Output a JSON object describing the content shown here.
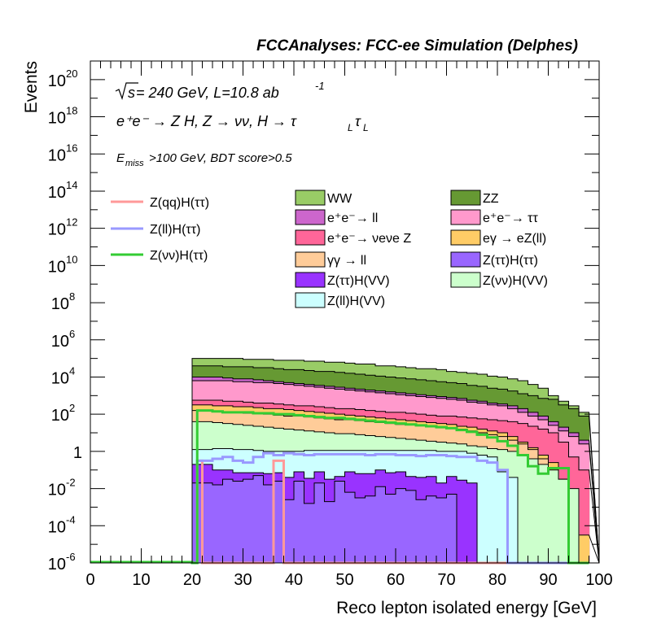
{
  "header": "FCCAnalyses: FCC-ee Simulation (Delphes)",
  "annotations": {
    "energy_sqrt": "s",
    "energy_rest": " = 240 GeV, L=10.8 ab",
    "energy_sup": "-1",
    "process": "e⁺e⁻ → Z H, Z  → νν, H  → τ",
    "process_sub": "L",
    "process_tau2": "τ",
    "cut_prefix": "E",
    "cut_sub": "miss",
    "cut_rest": ">100 GeV, BDT score>0.5"
  },
  "chart_data": {
    "type": "histogram",
    "xlabel": "Reco lepton isolated energy [GeV]",
    "ylabel": "Events",
    "yscale": "log",
    "xlim": [
      0,
      100
    ],
    "ylim_exp": [
      -6,
      21
    ],
    "x_ticks": [
      0,
      10,
      20,
      30,
      40,
      50,
      60,
      70,
      80,
      90,
      100
    ],
    "x_tick_labels": [
      "0",
      "10",
      "20",
      "30",
      "40",
      "50",
      "60",
      "70",
      "80",
      "90",
      "100"
    ],
    "y_ticks_exp": [
      -6,
      -4,
      -2,
      0,
      2,
      4,
      6,
      8,
      10,
      12,
      14,
      16,
      18,
      20
    ],
    "y_tick_labels": [
      {
        "base": "10",
        "exp": "-6"
      },
      {
        "base": "10",
        "exp": "-4"
      },
      {
        "base": "10",
        "exp": "-2"
      },
      {
        "base": "1",
        "exp": ""
      },
      {
        "base": "10",
        "exp": "2"
      },
      {
        "base": "10",
        "exp": "4"
      },
      {
        "base": "10",
        "exp": "6"
      },
      {
        "base": "10",
        "exp": "8"
      },
      {
        "base": "10",
        "exp": "10"
      },
      {
        "base": "10",
        "exp": "12"
      },
      {
        "base": "10",
        "exp": "14"
      },
      {
        "base": "10",
        "exp": "16"
      },
      {
        "base": "10",
        "exp": "18"
      },
      {
        "base": "10",
        "exp": "20"
      }
    ],
    "bin_edges": [
      20,
      22,
      24,
      26,
      28,
      30,
      32,
      34,
      36,
      38,
      40,
      42,
      44,
      46,
      48,
      50,
      52,
      54,
      56,
      58,
      60,
      62,
      64,
      66,
      68,
      70,
      72,
      74,
      76,
      78,
      80,
      82,
      84,
      86,
      88,
      90,
      92,
      94,
      96,
      98
    ],
    "stack_top_log10": [
      {
        "name": "WW",
        "values": [
          5.0,
          5.0,
          5.0,
          5.0,
          5.0,
          4.95,
          4.95,
          4.95,
          4.9,
          4.9,
          4.9,
          4.85,
          4.85,
          4.8,
          4.8,
          4.75,
          4.7,
          4.7,
          4.6,
          4.6,
          4.55,
          4.5,
          4.45,
          4.45,
          4.4,
          4.3,
          4.25,
          4.2,
          4.15,
          4.05,
          4.0,
          3.9,
          3.8,
          3.6,
          3.4,
          3.0,
          2.7,
          2.45,
          2.1
        ]
      },
      {
        "name": "ZZ",
        "values": [
          4.6,
          4.6,
          4.6,
          4.55,
          4.55,
          4.55,
          4.5,
          4.5,
          4.45,
          4.4,
          4.4,
          4.35,
          4.3,
          4.3,
          4.25,
          4.2,
          4.15,
          4.1,
          4.05,
          4.0,
          3.95,
          3.9,
          3.85,
          3.8,
          3.75,
          3.7,
          3.65,
          3.55,
          3.5,
          3.4,
          3.35,
          3.25,
          3.1,
          3.0,
          2.85,
          2.8,
          2.5,
          2.3,
          1.9
        ]
      },
      {
        "name": "e⁺e⁻→ ll",
        "values": [
          4.0,
          4.0,
          4.0,
          3.95,
          3.9,
          3.9,
          3.85,
          3.8,
          3.75,
          3.7,
          3.65,
          3.6,
          3.55,
          3.5,
          3.45,
          3.4,
          3.35,
          3.3,
          3.25,
          3.2,
          3.15,
          3.1,
          3.05,
          3.0,
          2.95,
          2.9,
          2.85,
          2.75,
          2.7,
          2.6,
          2.55,
          2.45,
          2.3,
          2.1,
          1.9,
          1.6,
          1.3,
          1.0,
          0.6
        ]
      },
      {
        "name": "e⁺e⁻→ ττ",
        "values": [
          3.8,
          3.8,
          3.8,
          3.8,
          3.75,
          3.75,
          3.7,
          3.7,
          3.65,
          3.6,
          3.55,
          3.5,
          3.45,
          3.4,
          3.35,
          3.3,
          3.25,
          3.2,
          3.15,
          3.1,
          3.05,
          3.0,
          2.95,
          2.9,
          2.85,
          2.8,
          2.75,
          2.65,
          2.6,
          2.5,
          2.45,
          2.3,
          2.1,
          1.9,
          1.7,
          1.4,
          1.1,
          0.8,
          0.4
        ]
      },
      {
        "name": "e⁺e⁻→ νeνe Z",
        "values": [
          2.75,
          2.75,
          2.75,
          2.7,
          2.7,
          2.65,
          2.6,
          2.6,
          2.55,
          2.5,
          2.45,
          2.45,
          2.4,
          2.35,
          2.3,
          2.3,
          2.25,
          2.2,
          2.15,
          2.1,
          2.1,
          2.05,
          2.0,
          1.95,
          1.9,
          1.9,
          1.85,
          1.8,
          1.75,
          1.7,
          1.65,
          1.6,
          1.5,
          1.35,
          1.2,
          1.0,
          0.5,
          -0.3,
          -1.0
        ]
      },
      {
        "name": "eγ → eZ(ll)",
        "values": [
          2.5,
          2.5,
          2.45,
          2.45,
          2.4,
          2.4,
          2.35,
          2.3,
          2.3,
          2.25,
          2.2,
          2.15,
          2.1,
          2.05,
          2.0,
          1.95,
          1.9,
          1.85,
          1.8,
          1.75,
          1.7,
          1.65,
          1.6,
          1.55,
          1.5,
          1.45,
          1.35,
          1.3,
          1.2,
          1.1,
          1.0,
          0.8,
          0.5,
          0.2,
          -0.2,
          -0.6,
          -1.5,
          -3.0,
          -4.5
        ]
      },
      {
        "name": "γγ → ll",
        "values": [
          2.2,
          2.2,
          2.15,
          2.1,
          2.1,
          2.05,
          2.05,
          2.0,
          1.95,
          1.9,
          1.9,
          1.85,
          1.8,
          1.75,
          1.7,
          1.7,
          1.65,
          1.6,
          1.55,
          1.5,
          1.45,
          1.45,
          1.4,
          1.35,
          1.3,
          1.25,
          1.2,
          1.1,
          1.0,
          0.9,
          0.8,
          0.6,
          0.4,
          0.1,
          -0.4,
          -1.2,
          -2.5,
          -4.5,
          -6.0
        ]
      },
      {
        "name": "Z(νν)H(VV)",
        "values": [
          1.6,
          1.6,
          1.55,
          1.5,
          1.45,
          1.4,
          1.35,
          1.3,
          1.25,
          1.2,
          1.15,
          1.1,
          1.05,
          1.0,
          0.95,
          0.95,
          0.9,
          0.85,
          0.8,
          0.75,
          0.7,
          0.65,
          0.6,
          0.55,
          0.5,
          0.45,
          0.4,
          0.3,
          0.25,
          0.15,
          0.1,
          0.0,
          -0.2,
          -0.4,
          -0.7,
          -1.0,
          -1.5,
          -2.0,
          -6.0
        ]
      },
      {
        "name": "Z(ll)H(VV)",
        "values": [
          0.1,
          0.1,
          0.15,
          0.15,
          0.1,
          0.1,
          0.05,
          0.0,
          0.0,
          0.0,
          0.0,
          0.05,
          0.05,
          0.05,
          0.05,
          0.05,
          0.05,
          0.05,
          0.05,
          0.05,
          0.05,
          0.05,
          0.05,
          0.05,
          0.0,
          0.0,
          0.0,
          -0.1,
          -0.2,
          -0.3,
          -1.1,
          -1.4,
          -6.0,
          -6.0,
          -6.0,
          -6.0,
          -6.0,
          -6.0,
          -6.0
        ]
      },
      {
        "name": "Z(ττ)H(VV)",
        "values": [
          -0.7,
          -0.7,
          -1.0,
          -1.0,
          -1.15,
          -1.15,
          -1.15,
          -1.2,
          -1.15,
          -1.4,
          -1.1,
          -1.45,
          -1.1,
          -1.5,
          -1.35,
          -1.1,
          -1.2,
          -1.2,
          -1.0,
          -1.15,
          -1.1,
          -1.35,
          -1.4,
          -1.35,
          -1.7,
          -1.35,
          -1.55,
          -1.7,
          -6.0,
          -6.0,
          -6.0,
          -6.0,
          -6.0,
          -6.0,
          -6.0,
          -6.0,
          -6.0,
          -6.0,
          -6.0
        ]
      },
      {
        "name": "Z(ττ)H(ττ)",
        "values": [
          -1.7,
          -1.7,
          -1.8,
          -1.5,
          -1.6,
          -1.5,
          -1.3,
          -1.8,
          -1.6,
          -2.6,
          -1.6,
          -2.8,
          -1.7,
          -2.7,
          -1.6,
          -2.2,
          -2.5,
          -2.4,
          -1.9,
          -2.3,
          -2.0,
          -2.1,
          -2.6,
          -2.4,
          -2.5,
          -2.3,
          -6.0,
          -6.0,
          -6.0,
          -6.0,
          -6.0,
          -6.0,
          -6.0,
          -6.0,
          -6.0,
          -6.0,
          -6.0,
          -6.0,
          -6.0
        ]
      }
    ],
    "signal_edges": [
      20,
      21,
      22,
      24,
      26,
      28,
      30,
      32,
      34,
      36,
      38,
      40,
      42,
      44,
      46,
      48,
      50,
      52,
      54,
      56,
      58,
      60,
      62,
      64,
      66,
      68,
      70,
      72,
      74,
      76,
      78,
      80,
      82,
      84,
      86,
      88,
      90,
      92,
      94,
      96
    ],
    "signals_log10": [
      {
        "name": "Z(qq)H(ττ)",
        "values": [
          -6,
          -0.5,
          -6,
          -6,
          -6,
          -6,
          -6,
          -6,
          -6,
          -0.5,
          -6,
          -6,
          -6,
          -6,
          -6,
          -6,
          -6,
          -6,
          -6,
          -6,
          -6,
          -6,
          -6,
          -6,
          -6,
          -6,
          -6,
          -6,
          -6,
          -6,
          -6,
          -6,
          -6,
          -6,
          -6,
          -6,
          -6,
          -6,
          -6
        ]
      },
      {
        "name": "Z(ll)H(ττ)",
        "values": [
          -6,
          -0.5,
          -0.5,
          -0.4,
          -0.3,
          -0.5,
          -0.6,
          -0.3,
          -0.1,
          -0.2,
          -0.1,
          -0.15,
          -0.2,
          -0.15,
          -0.15,
          -0.15,
          -0.15,
          -0.15,
          -0.2,
          -0.15,
          -0.15,
          -0.2,
          -0.2,
          -0.25,
          -0.2,
          -0.2,
          -0.25,
          -0.3,
          -0.3,
          -0.5,
          -0.6,
          -1.0,
          -6,
          -6,
          -6,
          -6,
          -6,
          -6,
          -6
        ]
      },
      {
        "name": "Z(νν)H(ττ)",
        "values": [
          -6,
          2.2,
          2.2,
          2.15,
          2.1,
          2.1,
          2.1,
          2.05,
          2.05,
          2.0,
          2.0,
          1.95,
          1.9,
          1.85,
          1.8,
          1.8,
          1.75,
          1.7,
          1.65,
          1.6,
          1.55,
          1.5,
          1.45,
          1.4,
          1.35,
          1.3,
          1.25,
          1.15,
          1.05,
          0.9,
          0.75,
          0.55,
          0.3,
          -0.2,
          -0.8,
          -1.2,
          -0.9,
          -0.9,
          -6
        ]
      }
    ]
  },
  "legend_signals": [
    {
      "label": "Z(qq)H(ττ)",
      "color": "#ff9999"
    },
    {
      "label": "Z(ll)H(ττ)",
      "color": "#9999ff"
    },
    {
      "label": "Z(νν)H(ττ)",
      "color": "#33cc33"
    }
  ],
  "legend_backgrounds": [
    {
      "label": "WW",
      "color": "#99cc66"
    },
    {
      "label": "ZZ",
      "color": "#669933"
    },
    {
      "label": "e⁺e⁻→ ll",
      "color": "#cc66cc"
    },
    {
      "label": "e⁺e⁻→ ττ",
      "color": "#ff99cc"
    },
    {
      "label": "e⁺e⁻→ νeνe Z",
      "color": "#ff6699"
    },
    {
      "label": "eγ → eZ(ll)",
      "color": "#ffcc66"
    },
    {
      "label": "γγ → ll",
      "color": "#ffcc99"
    },
    {
      "label": "Z(ττ)H(ττ)",
      "color": "#9966ff"
    },
    {
      "label": "Z(ττ)H(VV)",
      "color": "#9933ff"
    },
    {
      "label": "Z(νν)H(VV)",
      "color": "#ccffcc"
    },
    {
      "label": "Z(ll)H(VV)",
      "color": "#ccffff"
    }
  ],
  "colors": {
    "WW": "#99cc66",
    "ZZ": "#669933",
    "e⁺e⁻→ ll": "#cc66cc",
    "e⁺e⁻→ ττ": "#ff99cc",
    "e⁺e⁻→ νeνe Z": "#ff6699",
    "eγ → eZ(ll)": "#ffcc66",
    "γγ → ll": "#ffcc99",
    "Z(ττ)H(ττ)": "#9966ff",
    "Z(ττ)H(VV)": "#9933ff",
    "Z(νν)H(VV)": "#ccffcc",
    "Z(ll)H(VV)": "#ccffff",
    "Z(qq)H(ττ)": "#ff9999",
    "Z(ll)H(ττ)": "#9999ff",
    "Z(νν)H(ττ)": "#33cc33"
  }
}
